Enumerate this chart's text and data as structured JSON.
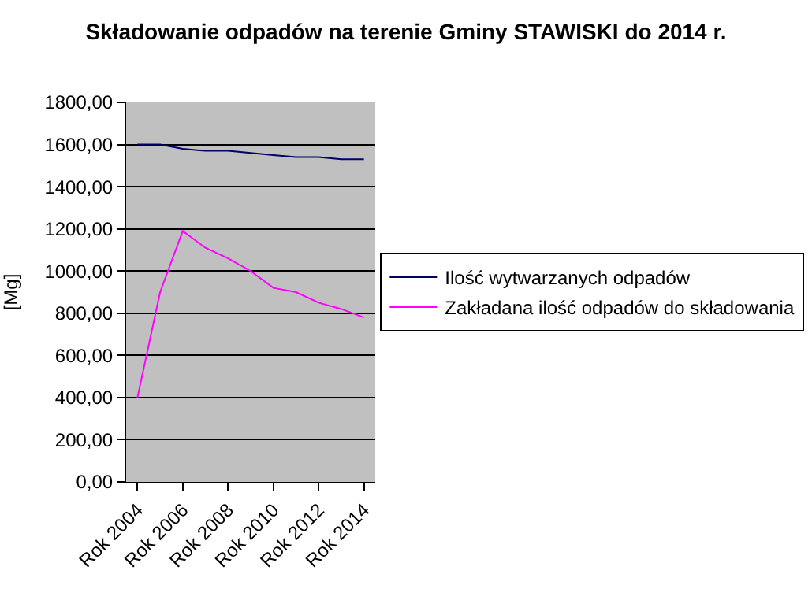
{
  "chart_data": {
    "type": "line",
    "title": "Składowanie odpadów na terenie Gminy STAWISKI do 2014 r.",
    "ylabel": "[Mg]",
    "categories": [
      "Rok 2004",
      null,
      "Rok 2006",
      null,
      "Rok 2008",
      null,
      "Rok 2010",
      null,
      "Rok 2012",
      null,
      "Rok 2014"
    ],
    "series": [
      {
        "name": "Ilość wytwarzanych odpadów",
        "color": "#000066",
        "values": [
          1600,
          1600,
          1580,
          1570,
          1570,
          1560,
          1550,
          1540,
          1540,
          1530,
          1530
        ]
      },
      {
        "name": "Zakładana ilość odpadów do składowania",
        "color": "#ff00ff",
        "values": [
          400,
          900,
          1190,
          1110,
          1060,
          1000,
          920,
          900,
          850,
          820,
          780
        ]
      }
    ],
    "ylim": [
      0,
      1800
    ],
    "yticks": [
      {
        "value": 0,
        "label": "0,00"
      },
      {
        "value": 200,
        "label": "200,00"
      },
      {
        "value": 400,
        "label": "400,00"
      },
      {
        "value": 600,
        "label": "600,00"
      },
      {
        "value": 800,
        "label": "800,00"
      },
      {
        "value": 1000,
        "label": "1000,00"
      },
      {
        "value": 1200,
        "label": "1200,00"
      },
      {
        "value": 1400,
        "label": "1400,00"
      },
      {
        "value": 1600,
        "label": "1600,00"
      },
      {
        "value": 1800,
        "label": "1800,00"
      }
    ],
    "grid": "y",
    "legend": "right",
    "marker": "none",
    "line_style": "solid"
  }
}
